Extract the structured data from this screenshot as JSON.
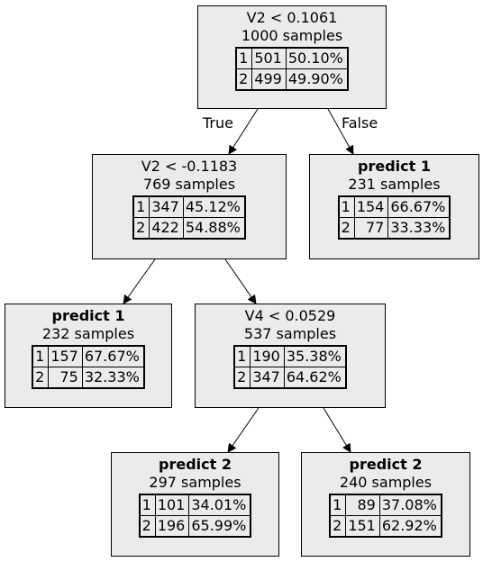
{
  "nodes": [
    {
      "title": "V2 < 0.1061",
      "leaf": false,
      "samples": "1000 samples",
      "rows": [
        {
          "cls": "1",
          "count": "501",
          "pct": "50.10%"
        },
        {
          "cls": "2",
          "count": "499",
          "pct": "49.90%"
        }
      ]
    },
    {
      "title": "V2 < -0.1183",
      "leaf": false,
      "samples": "769 samples",
      "rows": [
        {
          "cls": "1",
          "count": "347",
          "pct": "45.12%"
        },
        {
          "cls": "2",
          "count": "422",
          "pct": "54.88%"
        }
      ]
    },
    {
      "title": "predict 1",
      "leaf": true,
      "samples": "231 samples",
      "rows": [
        {
          "cls": "1",
          "count": "154",
          "pct": "66.67%"
        },
        {
          "cls": "2",
          "count": "77",
          "pct": "33.33%"
        }
      ]
    },
    {
      "title": "predict 1",
      "leaf": true,
      "samples": "232 samples",
      "rows": [
        {
          "cls": "1",
          "count": "157",
          "pct": "67.67%"
        },
        {
          "cls": "2",
          "count": "75",
          "pct": "32.33%"
        }
      ]
    },
    {
      "title": "V4 < 0.0529",
      "leaf": false,
      "samples": "537 samples",
      "rows": [
        {
          "cls": "1",
          "count": "190",
          "pct": "35.38%"
        },
        {
          "cls": "2",
          "count": "347",
          "pct": "64.62%"
        }
      ]
    },
    {
      "title": "predict 2",
      "leaf": true,
      "samples": "297 samples",
      "rows": [
        {
          "cls": "1",
          "count": "101",
          "pct": "34.01%"
        },
        {
          "cls": "2",
          "count": "196",
          "pct": "65.99%"
        }
      ]
    },
    {
      "title": "predict 2",
      "leaf": true,
      "samples": "240 samples",
      "rows": [
        {
          "cls": "1",
          "count": "89",
          "pct": "37.08%"
        },
        {
          "cls": "2",
          "count": "151",
          "pct": "62.92%"
        }
      ]
    }
  ],
  "edges": [
    {
      "from": 0,
      "to": 1,
      "label": "True"
    },
    {
      "from": 0,
      "to": 2,
      "label": "False"
    },
    {
      "from": 1,
      "to": 3,
      "label": ""
    },
    {
      "from": 1,
      "to": 4,
      "label": ""
    },
    {
      "from": 4,
      "to": 5,
      "label": ""
    },
    {
      "from": 4,
      "to": 6,
      "label": ""
    }
  ]
}
